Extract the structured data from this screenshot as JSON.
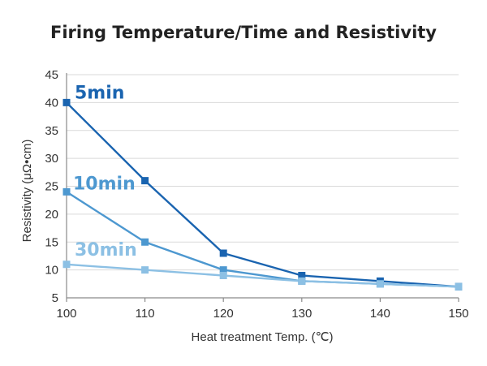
{
  "chart_data": {
    "type": "line",
    "title": "Firing Temperature/Time and Resistivity",
    "xlabel": "Heat treatment Temp. (℃)",
    "ylabel": "Resistivity (μΩ•cm)",
    "x": [
      100,
      110,
      120,
      130,
      140,
      150
    ],
    "xlim": [
      100,
      150
    ],
    "ylim": [
      5,
      45
    ],
    "xticks": [
      "100",
      "110",
      "120",
      "130",
      "140",
      "150"
    ],
    "yticks": [
      "5",
      "10",
      "15",
      "20",
      "25",
      "30",
      "35",
      "40",
      "45"
    ],
    "grid": "horizontal",
    "series": [
      {
        "name": "5min",
        "color": "#1a64b0",
        "values": [
          40,
          26,
          13,
          9,
          8,
          7
        ]
      },
      {
        "name": "10min",
        "color": "#4d98d0",
        "values": [
          24,
          15,
          10,
          8,
          7.5,
          7
        ]
      },
      {
        "name": "30min",
        "color": "#8cc0e4",
        "values": [
          11,
          10,
          9,
          8,
          7.5,
          7
        ]
      }
    ]
  }
}
